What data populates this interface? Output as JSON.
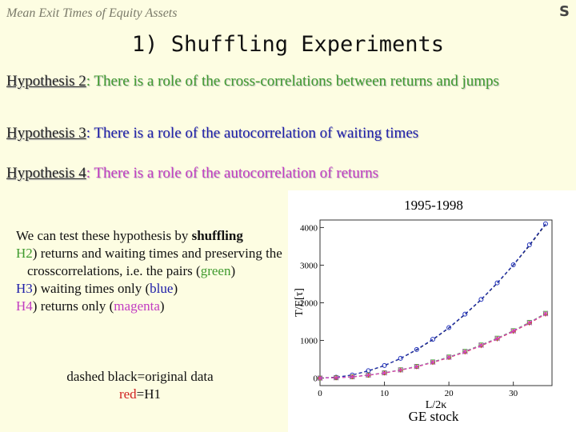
{
  "header": {
    "corner": "Mean Exit Times of Equity Assets",
    "letter": "S",
    "title": "1) Shuffling Experiments"
  },
  "hypotheses": [
    {
      "label": "Hypothesis 2",
      "text": ": There is a role of the cross-correlations between returns and jumps",
      "color": "#3f9a2e"
    },
    {
      "label": "Hypothesis 3",
      "text": ": There is a role of the autocorrelation of waiting times",
      "color": "#1c1ca8"
    },
    {
      "label": "Hypothesis 4",
      "text": ": There is a role of the autocorrelation of returns",
      "color": "#c23cc2"
    }
  ],
  "notes": [
    [
      {
        "text": "We can test these hypothesis by "
      },
      {
        "text": "shuffling",
        "bold": true
      }
    ],
    [
      {
        "text": "H2",
        "color": "#3f9a2e"
      },
      {
        "text": ") returns and waiting times and preserving the crosscorrelations, i.e. the pairs ("
      },
      {
        "text": "green",
        "color": "#3f9a2e"
      },
      {
        "text": ")"
      }
    ],
    [
      {
        "text": "H3",
        "color": "#1c1ca8"
      },
      {
        "text": ") waiting times only ("
      },
      {
        "text": "blue",
        "color": "#1c1ca8"
      },
      {
        "text": ")"
      }
    ],
    [
      {
        "text": "H4",
        "color": "#c23cc2"
      },
      {
        "text": ") returns only ("
      },
      {
        "text": "magenta",
        "color": "#c23cc2"
      },
      {
        "text": ")"
      }
    ]
  ],
  "footnote": [
    [
      {
        "text": "dashed black=original data"
      }
    ],
    [
      {
        "text": "red",
        "color": "#d02020"
      },
      {
        "text": "=H1"
      }
    ]
  ],
  "figure": {
    "type": "line",
    "title": "1995-1998",
    "caption": "GE stock",
    "xlabel": "L/2κ",
    "ylabel": "T/E[τ]",
    "xlim": [
      0,
      36
    ],
    "ylim": [
      -200,
      4200
    ],
    "xticks": [
      0,
      10,
      20,
      30
    ],
    "yticks": [
      0,
      1000,
      2000,
      3000,
      4000
    ],
    "x": [
      0,
      2.5,
      5,
      7.5,
      10,
      12.5,
      15,
      17.5,
      20,
      22.5,
      25,
      27.5,
      30,
      32.5,
      35
    ],
    "series": [
      {
        "name": "original data",
        "color": "#000000",
        "marker": "none",
        "values": [
          0,
          20,
          80,
          190,
          330,
          520,
          750,
          1020,
          1330,
          1690,
          2080,
          2520,
          3000,
          3520,
          4080
        ]
      },
      {
        "name": "H3",
        "color": "#2233bb",
        "marker": "circle",
        "values": [
          0,
          22,
          82,
          195,
          335,
          525,
          760,
          1030,
          1340,
          1700,
          2090,
          2530,
          3010,
          3540,
          4100
        ]
      },
      {
        "name": "H2",
        "color": "#44bb44",
        "marker": "square",
        "values": [
          0,
          10,
          35,
          80,
          140,
          220,
          310,
          430,
          560,
          710,
          880,
          1060,
          1260,
          1480,
          1720
        ]
      },
      {
        "name": "H1",
        "color": "#dd2222",
        "marker": "plus",
        "values": [
          0,
          8,
          32,
          75,
          135,
          212,
          300,
          415,
          545,
          690,
          860,
          1040,
          1240,
          1460,
          1700
        ]
      },
      {
        "name": "H4",
        "color": "#cc44cc",
        "marker": "cross",
        "values": [
          0,
          9,
          33,
          78,
          138,
          216,
          305,
          422,
          552,
          700,
          870,
          1050,
          1250,
          1470,
          1710
        ]
      }
    ]
  }
}
